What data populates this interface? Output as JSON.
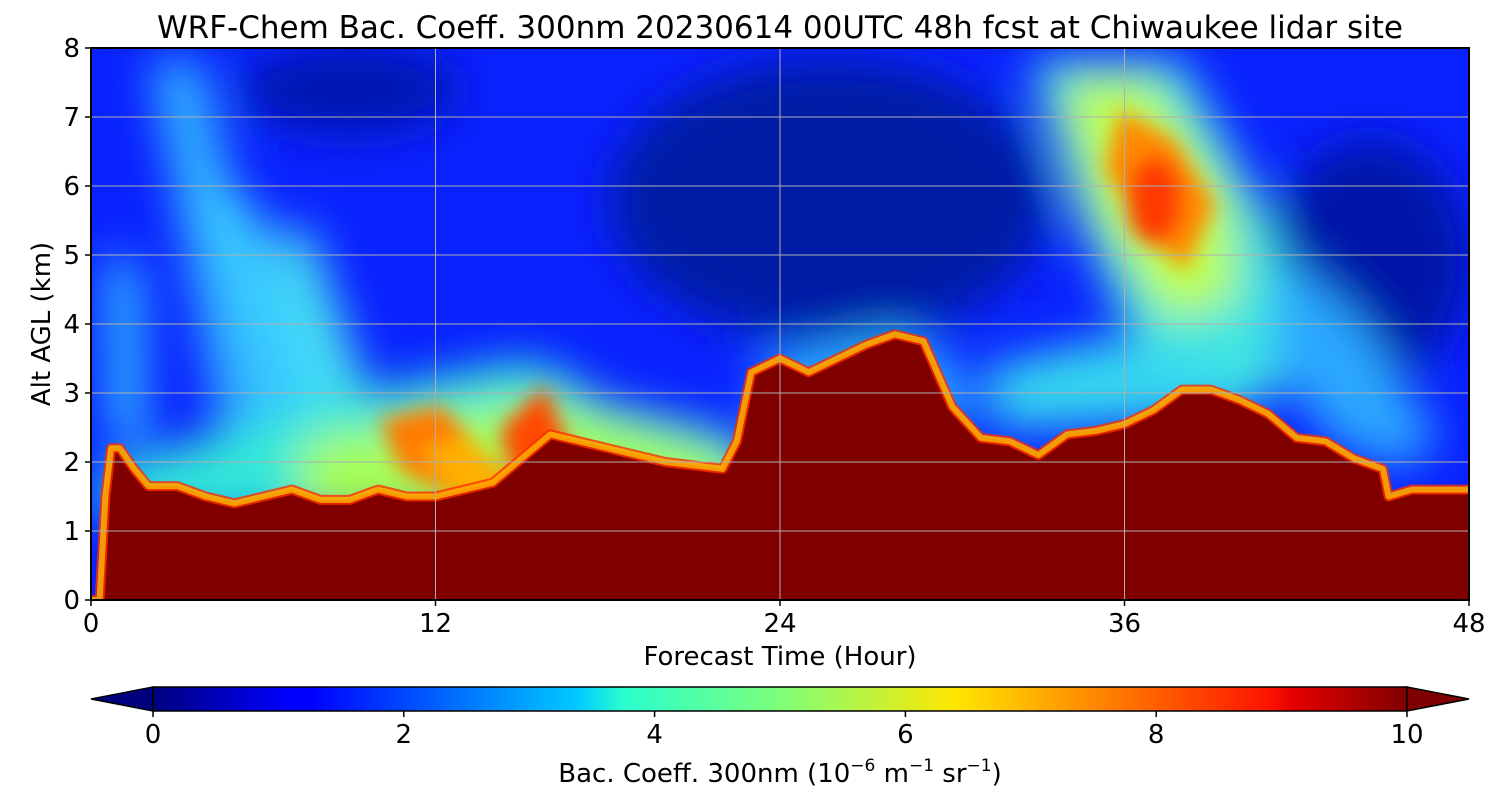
{
  "chart_data": {
    "type": "heatmap",
    "title": "WRF-Chem Bac. Coeff. 300nm  20230614 00UTC 48h fcst at Chiwaukee lidar site",
    "xlabel": "Forecast Time (Hour)",
    "ylabel": "Alt AGL (km)",
    "xlim": [
      0,
      48
    ],
    "ylim": [
      0,
      8
    ],
    "x_ticks": [
      0,
      12,
      24,
      36,
      48
    ],
    "y_ticks": [
      0,
      1,
      2,
      3,
      4,
      5,
      6,
      7,
      8
    ],
    "grid": true,
    "colormap": "jet",
    "colorbar": {
      "label_main": "Bac. Coeff. 300nm  (10",
      "label_exp1": "−6",
      "label_mid": " m",
      "label_exp2": "−1",
      "label_mid2": " sr",
      "label_exp3": "−1",
      "label_end": ")",
      "vmin": 0,
      "vmax": 10,
      "ticks": [
        0,
        2,
        4,
        6,
        8,
        10
      ],
      "extend": "both",
      "placement": "bottom"
    },
    "saturated_layer": {
      "value": 10,
      "x": [
        0,
        0.3,
        0.5,
        0.7,
        1.0,
        1.5,
        2.0,
        3.0,
        4.0,
        5.0,
        6.0,
        7.0,
        8.0,
        9.0,
        10.0,
        11.0,
        12.0,
        14.0,
        16.0,
        18.0,
        20.0,
        22.0,
        22.5,
        23.0,
        24.0,
        25.0,
        27.0,
        28.0,
        29.0,
        30.0,
        31.0,
        32.0,
        33.0,
        34.0,
        35.0,
        36.0,
        37.0,
        38.0,
        39.0,
        40.0,
        41.0,
        42.0,
        43.0,
        44.0,
        45.0,
        45.2,
        46.0,
        47.0,
        48.0
      ],
      "top_km": [
        0,
        0,
        1.5,
        2.2,
        2.2,
        1.9,
        1.65,
        1.65,
        1.5,
        1.4,
        1.5,
        1.6,
        1.45,
        1.45,
        1.6,
        1.5,
        1.5,
        1.7,
        2.4,
        2.2,
        2.0,
        1.9,
        2.3,
        3.3,
        3.5,
        3.3,
        3.7,
        3.85,
        3.75,
        2.8,
        2.35,
        2.3,
        2.1,
        2.4,
        2.45,
        2.55,
        2.75,
        3.05,
        3.05,
        2.9,
        2.7,
        2.35,
        2.3,
        2.05,
        1.9,
        1.5,
        1.6,
        1.6,
        1.6
      ]
    },
    "features": [
      {
        "value": 8.5,
        "x": 37.0,
        "y_km": 5.8,
        "desc": "elevated aerosol plume maximum"
      },
      {
        "value": 7.5,
        "x": 11.5,
        "y_km": 1.9,
        "desc": "boundary-layer top enhancement"
      },
      {
        "value": 7.5,
        "x": 15.5,
        "y_km": 2.5,
        "desc": "boundary-layer top enhancement"
      },
      {
        "value": 0.5,
        "x": 26.0,
        "y_km": 5.5,
        "desc": "clean free troposphere minimum"
      }
    ]
  }
}
